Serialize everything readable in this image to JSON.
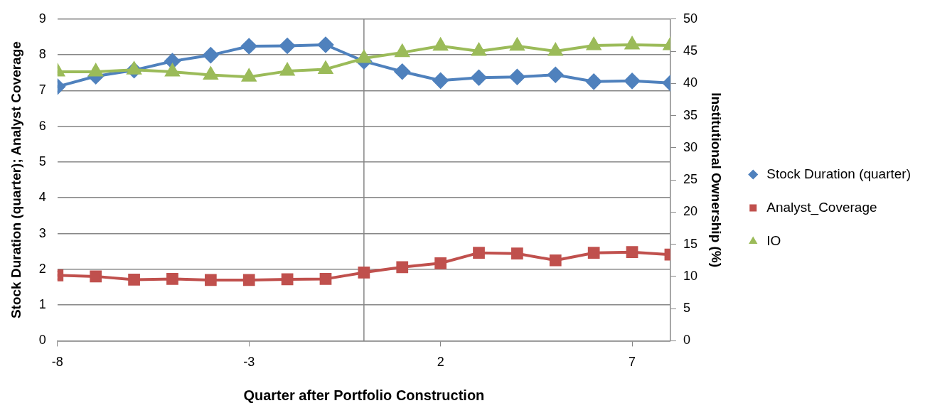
{
  "chart_data": {
    "type": "line",
    "xlabel": "Quarter after Portfolio Construction",
    "ylabel": "Stock Duration (quarter); Analyst Coverage",
    "y2label": "Institutional Ownership (%)",
    "x": [
      -8,
      -7,
      -6,
      -5,
      -4,
      -3,
      -2,
      -1,
      0,
      1,
      2,
      3,
      4,
      5,
      6,
      7,
      8
    ],
    "xlim": [
      -8,
      8
    ],
    "xticks": [
      -8,
      -3,
      2,
      7
    ],
    "ylim": [
      0,
      9
    ],
    "yticks": [
      0,
      1,
      2,
      3,
      4,
      5,
      6,
      7,
      8,
      9
    ],
    "y2lim": [
      0,
      50
    ],
    "y2ticks": [
      0,
      5,
      10,
      15,
      20,
      25,
      30,
      35,
      40,
      45,
      50
    ],
    "grid": "y",
    "legend": "right",
    "line_style": "solid",
    "ref_lines": [
      {
        "axis": "x",
        "value": 0,
        "color": "#868686"
      }
    ],
    "series": [
      {
        "name": "Stock Duration (quarter)",
        "color": "#4f81bd",
        "marker": "diamond",
        "values": [
          7.11,
          7.4,
          7.57,
          7.82,
          7.99,
          8.24,
          8.25,
          8.28,
          7.82,
          7.53,
          7.28,
          7.36,
          7.38,
          7.44,
          7.25,
          7.27,
          7.21
        ]
      },
      {
        "name": "Analyst_Coverage",
        "color": "#c0504d",
        "marker": "square",
        "values": [
          1.83,
          1.8,
          1.71,
          1.73,
          1.7,
          1.7,
          1.72,
          1.73,
          1.91,
          2.06,
          2.17,
          2.46,
          2.44,
          2.25,
          2.46,
          2.48,
          2.41
        ]
      },
      {
        "name": "IO",
        "color": "#9bbb59",
        "marker": "triangle",
        "axis": "y2",
        "values": [
          41.8,
          41.8,
          42.1,
          41.8,
          41.3,
          41.0,
          41.9,
          42.2,
          43.9,
          44.8,
          45.8,
          45.0,
          45.8,
          45.0,
          45.9,
          46.0,
          45.9
        ]
      }
    ]
  }
}
